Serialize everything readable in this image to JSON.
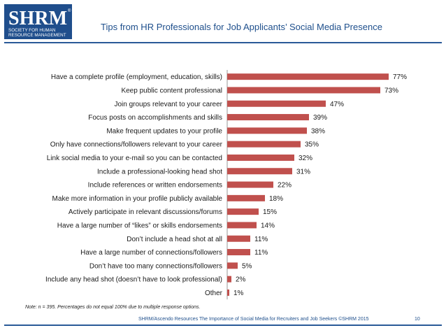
{
  "logo": {
    "letters": "SHRM",
    "line1": "SOCIETY FOR HUMAN",
    "line2": "RESOURCE MANAGEMENT",
    "registered": "®"
  },
  "header": {
    "title": "Tips from HR Professionals for Job Applicants’ Social Media Presence"
  },
  "chart_data": {
    "type": "bar",
    "orientation": "horizontal",
    "title": "Tips from HR Professionals for Job Applicants’ Social Media Presence",
    "xlabel": "",
    "ylabel": "",
    "xlim": [
      0,
      100
    ],
    "unit": "%",
    "bar_color": "#c0504d",
    "categories": [
      "Have a complete profile (employment, education, skills)",
      "Keep public content professional",
      "Join groups relevant to your career",
      "Focus posts on accomplishments and skills",
      "Make frequent updates to your profile",
      "Only have connections/followers relevant to your career",
      "Link social media to your e-mail so you can be contacted",
      "Include a professional-looking head shot",
      "Include references or written endorsements",
      "Make more information in your profile publicly available",
      "Actively participate in relevant discussions/forums",
      "Have a large number of “likes” or skills endorsements",
      "Don’t include a head shot at all",
      "Have a large number of connections/followers",
      "Don’t have too many connections/followers",
      "Include any head shot (doesn’t have to look professional)",
      "Other"
    ],
    "values": [
      77,
      73,
      47,
      39,
      38,
      35,
      32,
      31,
      22,
      18,
      15,
      14,
      11,
      11,
      5,
      2,
      1
    ]
  },
  "note": "Note: n = 395. Percentages do not equal 100% due to multiple response options.",
  "footer": {
    "source": "SHRM/Ascendo Resources The Importance of Social Media for Recruiters and Job Seekers ©SHRM 2015",
    "page": "10"
  }
}
